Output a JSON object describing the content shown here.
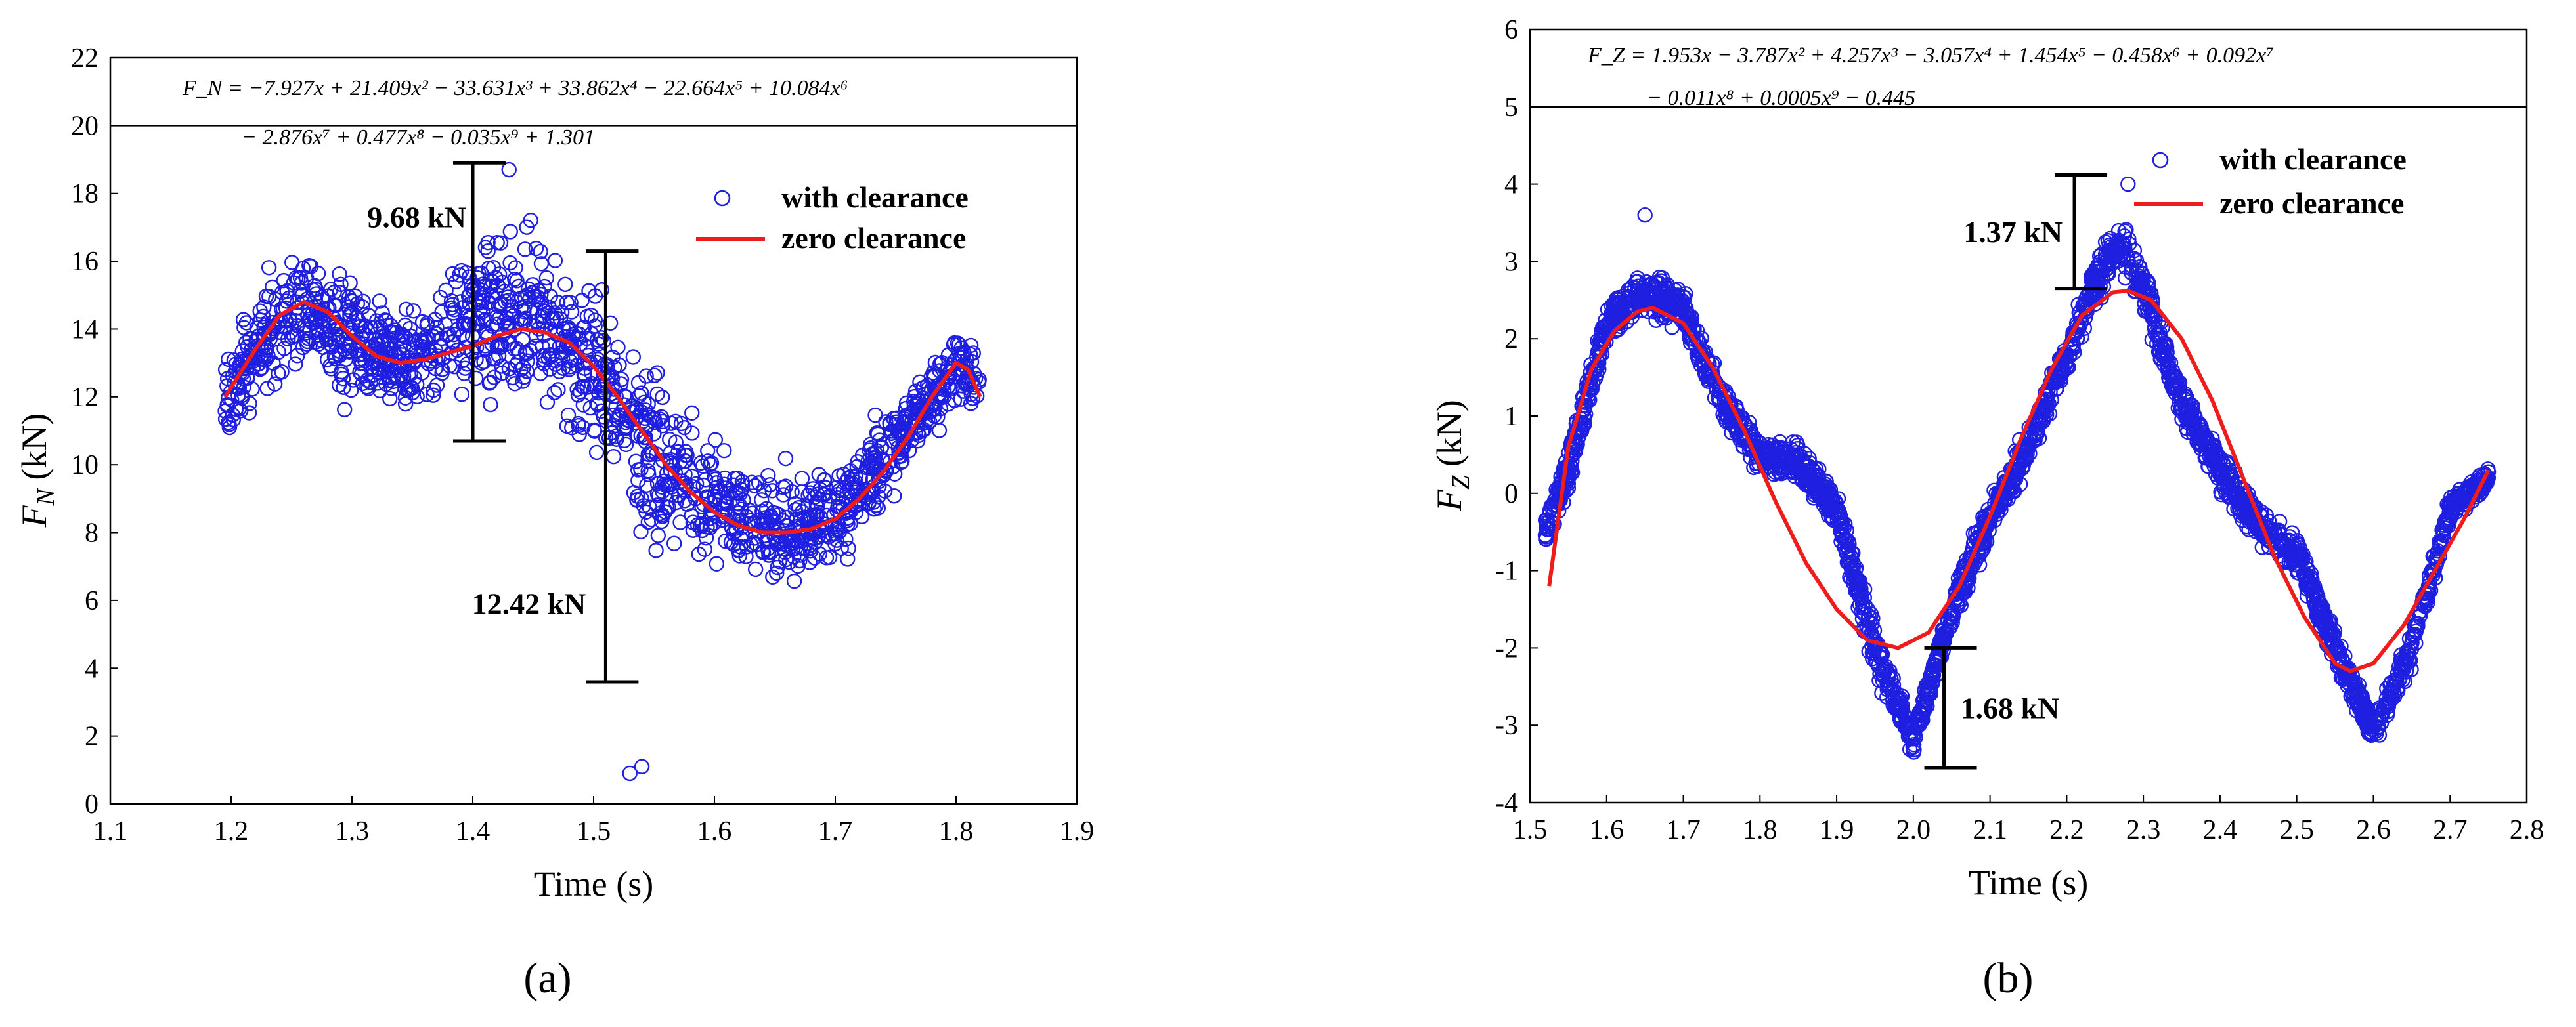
{
  "chart_data": [
    {
      "type": "scatter",
      "panel_label": "(a)",
      "xlabel": "Time (s)",
      "ylabel": "F_N (kN)",
      "ylabel_main": "F",
      "ylabel_sub": "N",
      "ylabel_unit": " (kN)",
      "xlim": [
        1.1,
        1.9
      ],
      "ylim": [
        0,
        22
      ],
      "equation_band_from": 20,
      "xticks": [
        "1.1",
        "1.2",
        "1.3",
        "1.4",
        "1.5",
        "1.6",
        "1.7",
        "1.8",
        "1.9"
      ],
      "yticks": [
        "0",
        "2",
        "4",
        "6",
        "8",
        "10",
        "12",
        "14",
        "16",
        "18",
        "20",
        "22"
      ],
      "equation_lines": [
        "F_N = −7.927x + 21.409x² − 33.631x³ + 33.862x⁴ − 22.664x⁵ + 10.084x⁶",
        "− 2.876x⁷ + 0.477x⁸ − 0.035x⁹ + 1.301"
      ],
      "legend": {
        "position": "top-right",
        "items": [
          "with clearance",
          "zero clearance"
        ]
      },
      "series": [
        {
          "name": "with clearance",
          "style": "open-circle",
          "color": "#1f1fe0",
          "x_range": [
            1.195,
            1.82
          ],
          "envelope_x": [
            1.2,
            1.25,
            1.3,
            1.35,
            1.4,
            1.45,
            1.5,
            1.55,
            1.6,
            1.65,
            1.7,
            1.75,
            1.8,
            1.82
          ],
          "envelope_mean": [
            12.2,
            14.8,
            13.6,
            13.0,
            14.5,
            14.2,
            12.8,
            10.3,
            8.9,
            8.0,
            8.4,
            10.6,
            12.9,
            12.2
          ],
          "envelope_spread": [
            2.2,
            2.6,
            2.8,
            2.2,
            3.8,
            3.8,
            3.5,
            4.2,
            3.0,
            2.5,
            2.5,
            2.2,
            1.8,
            1.6
          ],
          "outliers": [
            [
              1.53,
              0.9
            ],
            [
              1.54,
              1.1
            ],
            [
              1.43,
              18.7
            ]
          ]
        },
        {
          "name": "zero clearance",
          "style": "line",
          "color": "#ee1c1c",
          "x": [
            1.195,
            1.22,
            1.24,
            1.26,
            1.28,
            1.3,
            1.32,
            1.34,
            1.36,
            1.38,
            1.4,
            1.42,
            1.44,
            1.46,
            1.48,
            1.5,
            1.52,
            1.54,
            1.56,
            1.58,
            1.6,
            1.62,
            1.64,
            1.66,
            1.68,
            1.7,
            1.72,
            1.74,
            1.76,
            1.78,
            1.8,
            1.81,
            1.82
          ],
          "y": [
            12.0,
            13.4,
            14.4,
            14.8,
            14.5,
            13.8,
            13.2,
            13.0,
            13.1,
            13.3,
            13.5,
            13.8,
            14.0,
            13.9,
            13.6,
            12.9,
            12.0,
            11.0,
            10.0,
            9.2,
            8.6,
            8.2,
            8.0,
            8.0,
            8.1,
            8.4,
            9.0,
            9.8,
            10.8,
            12.0,
            13.0,
            12.8,
            12.0
          ]
        }
      ],
      "annotations": [
        {
          "label": "9.68 kN",
          "x": 1.4,
          "y_low": 10.7,
          "y_high": 18.9
        },
        {
          "label": "12.42 kN",
          "x": 1.51,
          "y_low": 3.6,
          "y_high": 16.3
        }
      ]
    },
    {
      "type": "scatter",
      "panel_label": "(b)",
      "xlabel": "Time (s)",
      "ylabel": "F_Z (kN)",
      "ylabel_main": "F",
      "ylabel_sub": "Z",
      "ylabel_unit": " (kN)",
      "xlim": [
        1.5,
        2.8
      ],
      "ylim": [
        -4,
        6
      ],
      "equation_band_from": 5,
      "xticks": [
        "1.5",
        "1.6",
        "1.7",
        "1.8",
        "1.9",
        "2.0",
        "2.1",
        "2.2",
        "2.3",
        "2.4",
        "2.5",
        "2.6",
        "2.7",
        "2.8"
      ],
      "yticks": [
        "-4",
        "-3",
        "-2",
        "-1",
        "0",
        "1",
        "2",
        "3",
        "4",
        "5",
        "6"
      ],
      "equation_lines": [
        "F_Z = 1.953x − 3.787x² + 4.257x³ − 3.057x⁴ + 1.454x⁵ − 0.458x⁶ + 0.092x⁷",
        "− 0.011x⁸ + 0.0005x⁹ − 0.445"
      ],
      "legend": {
        "position": "top-right",
        "items": [
          "with clearance",
          "zero clearance"
        ]
      },
      "series": [
        {
          "name": "with clearance",
          "style": "open-circle",
          "color": "#1f1fe0",
          "x_range": [
            1.52,
            2.75
          ],
          "envelope_x": [
            1.52,
            1.55,
            1.6,
            1.65,
            1.7,
            1.75,
            1.8,
            1.85,
            1.9,
            1.95,
            2.0,
            2.05,
            2.1,
            2.15,
            2.2,
            2.25,
            2.28,
            2.3,
            2.35,
            2.4,
            2.45,
            2.5,
            2.55,
            2.6,
            2.65,
            2.7,
            2.75
          ],
          "envelope_mean": [
            -0.5,
            0.3,
            2.2,
            2.6,
            2.4,
            1.2,
            0.5,
            0.4,
            -0.2,
            -2.0,
            -3.2,
            -1.5,
            -0.3,
            0.6,
            1.8,
            3.0,
            3.2,
            2.6,
            1.2,
            0.3,
            -0.4,
            -0.8,
            -2.0,
            -3.1,
            -2.0,
            -0.2,
            0.2
          ],
          "envelope_spread": [
            0.3,
            0.4,
            0.4,
            0.5,
            0.4,
            0.4,
            0.4,
            0.4,
            0.4,
            0.5,
            0.3,
            0.4,
            0.4,
            0.4,
            0.4,
            0.5,
            0.6,
            0.5,
            0.4,
            0.4,
            0.4,
            0.4,
            0.4,
            0.3,
            0.4,
            0.3,
            0.2
          ],
          "outliers": [
            [
              2.28,
              4.0
            ],
            [
              1.65,
              3.6
            ]
          ]
        },
        {
          "name": "zero clearance",
          "style": "line",
          "color": "#ee1c1c",
          "x": [
            1.525,
            1.55,
            1.58,
            1.61,
            1.64,
            1.66,
            1.7,
            1.74,
            1.78,
            1.82,
            1.86,
            1.9,
            1.94,
            1.98,
            2.02,
            2.06,
            2.1,
            2.14,
            2.18,
            2.22,
            2.26,
            2.28,
            2.31,
            2.35,
            2.39,
            2.43,
            2.47,
            2.51,
            2.55,
            2.57,
            2.6,
            2.64,
            2.68,
            2.72,
            2.75
          ],
          "y": [
            -1.2,
            0.6,
            1.6,
            2.1,
            2.35,
            2.4,
            2.2,
            1.6,
            0.8,
            -0.1,
            -0.9,
            -1.5,
            -1.9,
            -2.0,
            -1.8,
            -1.2,
            -0.3,
            0.7,
            1.6,
            2.3,
            2.6,
            2.62,
            2.5,
            2.0,
            1.2,
            0.2,
            -0.8,
            -1.6,
            -2.2,
            -2.3,
            -2.2,
            -1.7,
            -1.0,
            -0.3,
            0.3
          ]
        }
      ],
      "annotations": [
        {
          "label": "1.37 kN",
          "x": 2.21,
          "y_low": 2.65,
          "y_high": 4.12
        },
        {
          "label": "1.68 kN",
          "x": 2.04,
          "y_low": -3.55,
          "y_high": -2.0
        }
      ]
    }
  ]
}
